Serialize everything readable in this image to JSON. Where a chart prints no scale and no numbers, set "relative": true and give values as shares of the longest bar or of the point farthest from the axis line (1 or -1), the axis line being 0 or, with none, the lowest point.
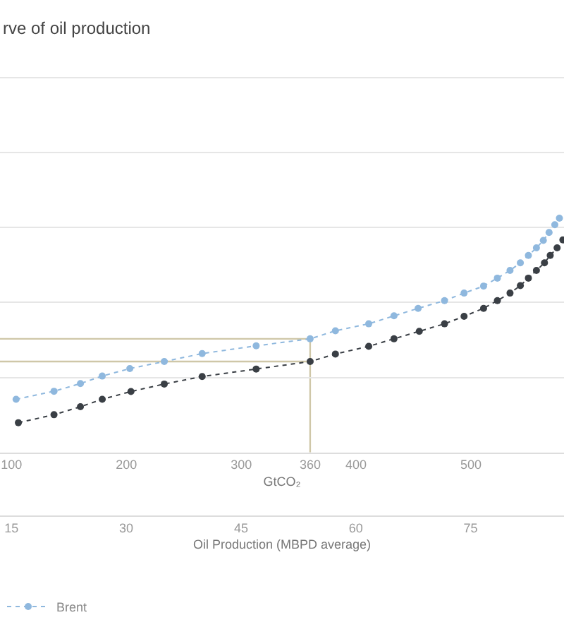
{
  "chart_data": {
    "type": "line",
    "title": "rve of oil production",
    "xlabel": "GtCO₂",
    "x2label": "Oil Production (MBPD average)",
    "relative": true,
    "xlim": [
      90,
      581
    ],
    "xticks": [
      100,
      200,
      300,
      360,
      400,
      500
    ],
    "x2lim": [
      13.5,
      87.2
    ],
    "x2ticks": [
      15,
      30,
      45,
      60,
      75
    ],
    "grid": "y",
    "legend": "bottom left",
    "marker": "circle",
    "line_style": "dotted",
    "ref_lines": [
      {
        "axis": "x",
        "value": 360,
        "color": "#cfc7a8"
      },
      {
        "axis": "y",
        "value": 0.485,
        "color": "#cfc7a8"
      },
      {
        "axis": "y",
        "value": 0.388,
        "color": "#cfc7a8"
      }
    ],
    "series": [
      {
        "name": "Brent",
        "color": "#8fb8de",
        "x": [
          104,
          137,
          160,
          179,
          203,
          233,
          266,
          313,
          360,
          382,
          411,
          433,
          454,
          477,
          494,
          511,
          523,
          534,
          543,
          550,
          557,
          563,
          568,
          573,
          577
        ],
        "values": [
          0.227,
          0.261,
          0.294,
          0.326,
          0.358,
          0.388,
          0.422,
          0.455,
          0.485,
          0.519,
          0.549,
          0.583,
          0.615,
          0.648,
          0.68,
          0.71,
          0.744,
          0.777,
          0.809,
          0.841,
          0.873,
          0.905,
          0.939,
          0.972,
          1
        ]
      },
      {
        "color": "#3a3f45",
        "x": [
          106,
          137,
          160,
          179,
          204,
          233,
          266,
          313,
          360,
          382,
          411,
          433,
          455,
          477,
          494,
          511,
          523,
          534,
          543,
          550,
          557,
          564,
          569,
          575,
          580
        ],
        "values": [
          0.127,
          0.161,
          0.195,
          0.227,
          0.26,
          0.292,
          0.324,
          0.356,
          0.388,
          0.42,
          0.453,
          0.485,
          0.517,
          0.549,
          0.581,
          0.615,
          0.648,
          0.68,
          0.712,
          0.744,
          0.777,
          0.809,
          0.841,
          0.873,
          0.907
        ]
      }
    ]
  }
}
